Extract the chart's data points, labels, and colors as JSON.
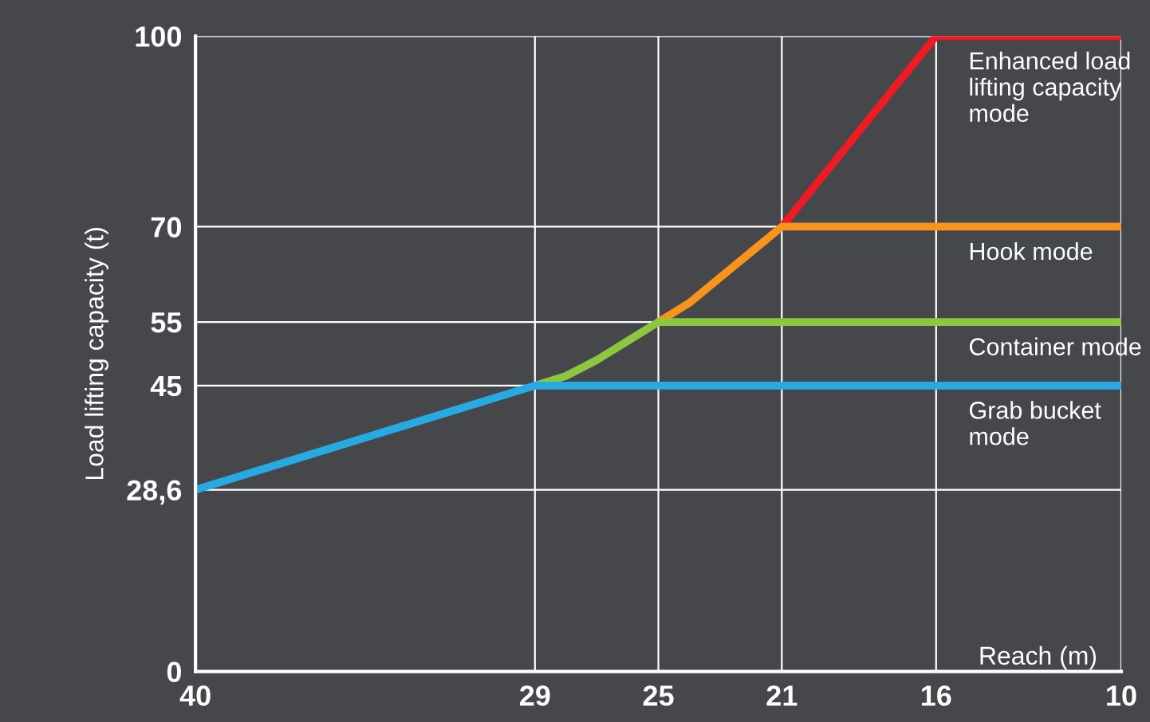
{
  "chart_data": {
    "type": "line",
    "xlabel": "Reach (m)",
    "ylabel": "Load lifting capacity (t)",
    "xlim": [
      40,
      10
    ],
    "ylim": [
      0,
      100
    ],
    "xticks": [
      40,
      29,
      25,
      21,
      16,
      10
    ],
    "yticks": [
      0,
      {
        "value": 28.6,
        "label": "28,6"
      },
      45,
      55,
      70,
      100
    ],
    "grid": true,
    "legend": false,
    "series": [
      {
        "name": "Enhanced load lifting capacity mode",
        "color": "#ed1c24",
        "x": [
          21,
          16,
          10
        ],
        "values": [
          70,
          100,
          100
        ]
      },
      {
        "name": "Hook mode",
        "color": "#f7941d",
        "x": [
          25,
          24,
          23,
          22,
          21,
          10
        ],
        "values": [
          55,
          58,
          62,
          66,
          70,
          70
        ]
      },
      {
        "name": "Container mode",
        "color": "#8dc63f",
        "x": [
          29,
          28,
          27,
          26,
          25,
          10
        ],
        "values": [
          45,
          46.5,
          49,
          52,
          55,
          55
        ]
      },
      {
        "name": "Grab bucket mode",
        "color": "#27aae1",
        "x": [
          40,
          29,
          10
        ],
        "values": [
          28.6,
          45,
          45
        ]
      }
    ]
  }
}
